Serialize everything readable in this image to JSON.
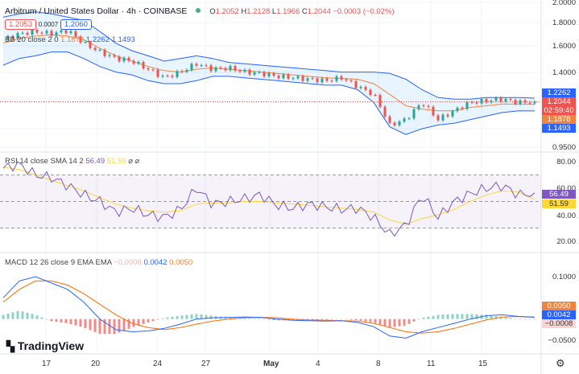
{
  "header": {
    "title": "Arbitrum / United States Dollar · 4h · COINBASE",
    "o_label": "O",
    "o": "1.2052",
    "h_label": "H",
    "h": "1.2128",
    "l_label": "L",
    "l": "1.1966",
    "c_label": "C",
    "c": "1.2044",
    "change": "−0.0003 (−0.02%)",
    "sell": "1.2053",
    "spread": "0.0007",
    "buy": "1.2060"
  },
  "bb_legend": {
    "name": "BB",
    "params": "20 close 2 0",
    "basis": "1.1878",
    "upper": "1.2262",
    "lower": "1.1493"
  },
  "rsi_legend": {
    "name": "RSI",
    "params": "14 close SMA 14 2",
    "rsi": "56.49",
    "sma": "51.59",
    "icons": "⌀ ⌀"
  },
  "macd_legend": {
    "name": "MACD",
    "params": "12 26 close 9 EMA EMA",
    "hist": "−0.0008",
    "macd": "0.0042",
    "signal": "0.0050"
  },
  "price_axis": [
    "2.0000",
    "1.8000",
    "1.6000",
    "1.4000",
    "0.9500"
  ],
  "price_tags": {
    "upper": "1.2262",
    "close": "1.2044",
    "countdown": "02:59:40",
    "basis": "1.1878",
    "lower": "1.1493"
  },
  "rsi_axis": [
    "80.00",
    "60.00",
    "40.00",
    "20.00"
  ],
  "rsi_tags": {
    "rsi": "56.49",
    "sma": "51.59"
  },
  "macd_axis": [
    "0.1000",
    "−0.0500"
  ],
  "macd_tags": {
    "signal": "0.0050",
    "macd": "0.0042",
    "hist": "−0.0008"
  },
  "x_axis": [
    "17",
    "20",
    "24",
    "27",
    "May",
    "4",
    "8",
    "11",
    "15"
  ],
  "logo": "TradingView",
  "colors": {
    "up": "#26a69a",
    "down": "#ef5350",
    "bb_basis": "#f0843c",
    "bb_band": "#2962ff",
    "rsi": "#7e57c2",
    "rsi_sma": "#fdd835",
    "macd": "#2962ff",
    "signal": "#ff6d00"
  },
  "chart_data": {
    "type": "candlestick",
    "close": [
      1.65,
      1.7,
      1.72,
      1.7,
      1.73,
      1.62,
      1.55,
      1.5,
      1.48,
      1.42,
      1.36,
      1.4,
      1.46,
      1.42,
      1.43,
      1.4,
      1.39,
      1.37,
      1.36,
      1.35,
      1.34,
      1.36,
      1.3,
      1.25,
      1.07,
      1.1,
      1.2,
      1.1,
      1.15,
      1.2,
      1.21,
      1.22,
      1.2,
      1.2044
    ],
    "bb_basis": [
      1.62,
      1.66,
      1.68,
      1.69,
      1.68,
      1.65,
      1.58,
      1.52,
      1.48,
      1.44,
      1.41,
      1.4,
      1.42,
      1.43,
      1.42,
      1.41,
      1.4,
      1.39,
      1.38,
      1.37,
      1.36,
      1.355,
      1.35,
      1.32,
      1.25,
      1.18,
      1.16,
      1.15,
      1.15,
      1.17,
      1.18,
      1.19,
      1.19,
      1.1878
    ],
    "bb_upper": [
      1.85,
      1.88,
      1.9,
      1.88,
      1.85,
      1.82,
      1.72,
      1.62,
      1.56,
      1.52,
      1.48,
      1.5,
      1.52,
      1.5,
      1.47,
      1.46,
      1.45,
      1.44,
      1.43,
      1.42,
      1.41,
      1.4,
      1.4,
      1.4,
      1.39,
      1.35,
      1.28,
      1.23,
      1.22,
      1.22,
      1.23,
      1.23,
      1.23,
      1.2262
    ],
    "bb_lower": [
      1.45,
      1.5,
      1.52,
      1.55,
      1.55,
      1.5,
      1.44,
      1.4,
      1.38,
      1.34,
      1.32,
      1.32,
      1.34,
      1.37,
      1.37,
      1.36,
      1.35,
      1.34,
      1.33,
      1.32,
      1.31,
      1.31,
      1.28,
      1.2,
      1.06,
      1.02,
      1.05,
      1.07,
      1.08,
      1.1,
      1.12,
      1.14,
      1.15,
      1.1493
    ],
    "rsi": [
      75,
      78,
      70,
      68,
      62,
      55,
      50,
      42,
      45,
      40,
      38,
      44,
      60,
      48,
      50,
      52,
      55,
      47,
      45,
      48,
      46,
      44,
      45,
      38,
      25,
      32,
      55,
      38,
      50,
      56,
      60,
      62,
      55,
      56.49
    ],
    "rsi_sma": [
      76,
      74,
      70,
      66,
      62,
      58,
      53,
      48,
      45,
      43,
      42,
      43,
      48,
      49,
      49,
      50,
      50,
      49,
      48,
      47,
      46,
      45,
      44,
      42,
      36,
      33,
      37,
      40,
      44,
      50,
      55,
      58,
      57,
      51.59
    ],
    "rsi_bands": [
      70,
      30
    ],
    "macd": [
      0.05,
      0.09,
      0.1,
      0.085,
      0.07,
      0.04,
      0.0,
      -0.025,
      -0.03,
      -0.028,
      -0.022,
      -0.012,
      0.0,
      0.003,
      0.004,
      0.005,
      0.004,
      0.0,
      -0.003,
      -0.004,
      -0.005,
      -0.004,
      -0.008,
      -0.018,
      -0.04,
      -0.045,
      -0.03,
      -0.02,
      -0.01,
      0.0,
      0.008,
      0.01,
      0.006,
      0.0042
    ],
    "signal": [
      0.04,
      0.07,
      0.09,
      0.09,
      0.08,
      0.06,
      0.035,
      0.01,
      -0.01,
      -0.02,
      -0.025,
      -0.02,
      -0.012,
      -0.005,
      0.0,
      0.003,
      0.004,
      0.003,
      0.0,
      -0.002,
      -0.003,
      -0.004,
      -0.005,
      -0.01,
      -0.02,
      -0.03,
      -0.033,
      -0.03,
      -0.022,
      -0.012,
      -0.002,
      0.005,
      0.006,
      0.005
    ],
    "price_scale": "log",
    "ylim": [
      0.95,
      2.0
    ],
    "rsi_ylim": [
      20,
      80
    ],
    "macd_ylim": [
      -0.05,
      0.1
    ],
    "grid": true
  }
}
